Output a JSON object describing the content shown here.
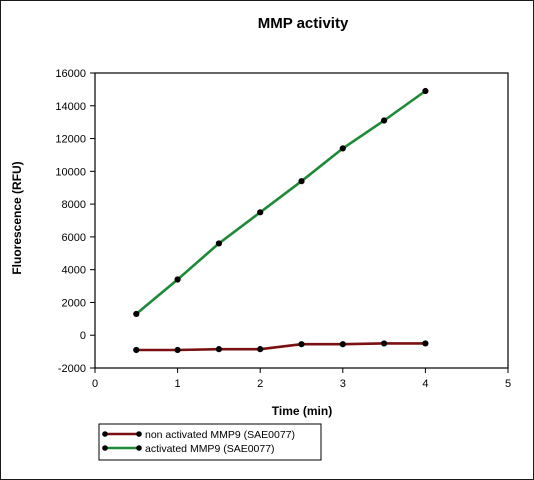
{
  "chart_data": {
    "type": "line",
    "title": "MMP activity",
    "xlabel": "Time (min)",
    "ylabel": "Fluorescence (RFU)",
    "xlim": [
      0,
      5
    ],
    "ylim": [
      -2000,
      16000
    ],
    "x_ticks": [
      "0",
      "1",
      "2",
      "3",
      "4",
      "5"
    ],
    "y_ticks": [
      "-2000",
      "0",
      "2000",
      "4000",
      "6000",
      "8000",
      "10000",
      "12000",
      "14000",
      "16000"
    ],
    "x_tick_values": [
      0,
      1,
      2,
      3,
      4,
      5
    ],
    "y_tick_values": [
      -2000,
      0,
      2000,
      4000,
      6000,
      8000,
      10000,
      12000,
      14000,
      16000
    ],
    "grid": false,
    "legend_position": "bottom-left",
    "series": [
      {
        "name": "non activated MMP9 (SAE0077)",
        "color": "#7a1010",
        "marker_color": "#000000",
        "x": [
          0.5,
          1,
          1.5,
          2,
          2.5,
          3,
          3.5,
          4
        ],
        "y": [
          -900,
          -900,
          -850,
          -850,
          -550,
          -550,
          -500,
          -500
        ]
      },
      {
        "name": "activated MMP9 (SAE0077)",
        "color": "#1e8a38",
        "marker_color": "#000000",
        "x": [
          0.5,
          1,
          1.5,
          2,
          2.5,
          3,
          3.5,
          4
        ],
        "y": [
          1300,
          3400,
          5600,
          7500,
          9400,
          11400,
          13100,
          14900
        ]
      }
    ]
  }
}
